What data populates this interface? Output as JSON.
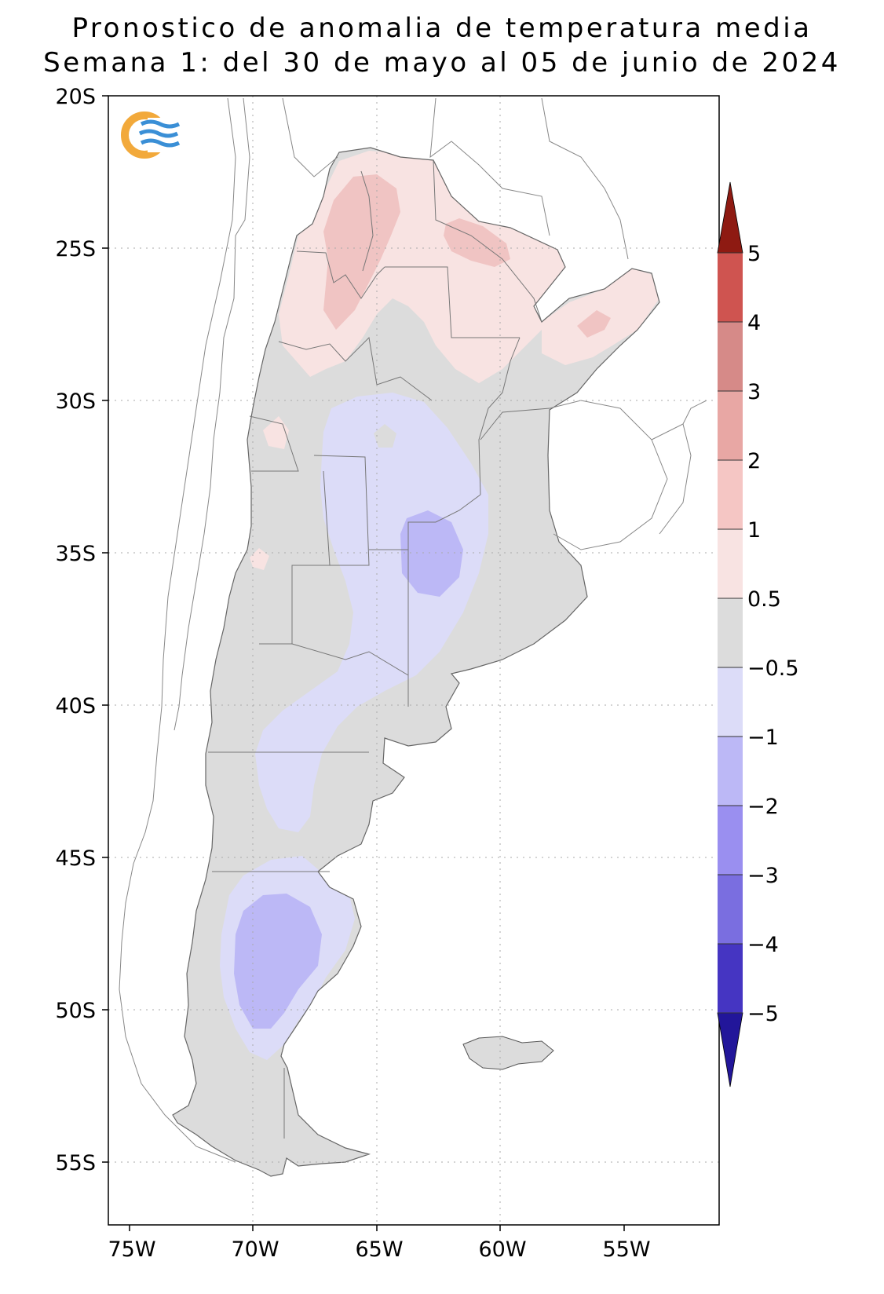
{
  "title": {
    "line1": "Pronostico de anomalia de temperatura media",
    "line2": "Semana 1: del 30 de mayo al 05 de junio de 2024"
  },
  "axes": {
    "lat_labels": [
      "20S",
      "25S",
      "30S",
      "35S",
      "40S",
      "45S",
      "50S",
      "55S"
    ],
    "lon_labels": [
      "75W",
      "70W",
      "65W",
      "60W",
      "55W"
    ]
  },
  "logo": {
    "name": "smn-logo",
    "colors": [
      "#f2a93b",
      "#3a8fd6"
    ]
  },
  "colorbar": {
    "levels": [
      "5",
      "4",
      "3",
      "2",
      "1",
      "0.5",
      "−0.5",
      "−1",
      "−2",
      "−3",
      "−4",
      "−5"
    ],
    "colors_top_to_bottom": [
      "#8e1a12",
      "#cf5450",
      "#d68a88",
      "#e8a7a4",
      "#f5c6c4",
      "#f8e3e2",
      "#dcdcdc",
      "#dcdcf8",
      "#bcb8f6",
      "#9a8ff0",
      "#7a6ee0",
      "#4535c2",
      "#22169a"
    ]
  },
  "anomaly_colors": {
    "neutral": "#dcdcdc",
    "warm_05_1": "#f8e3e2",
    "warm_1_2": "#f0c4c3",
    "cold_05_1": "#dcdcf8",
    "cold_1_2": "#bcb8f6"
  }
}
